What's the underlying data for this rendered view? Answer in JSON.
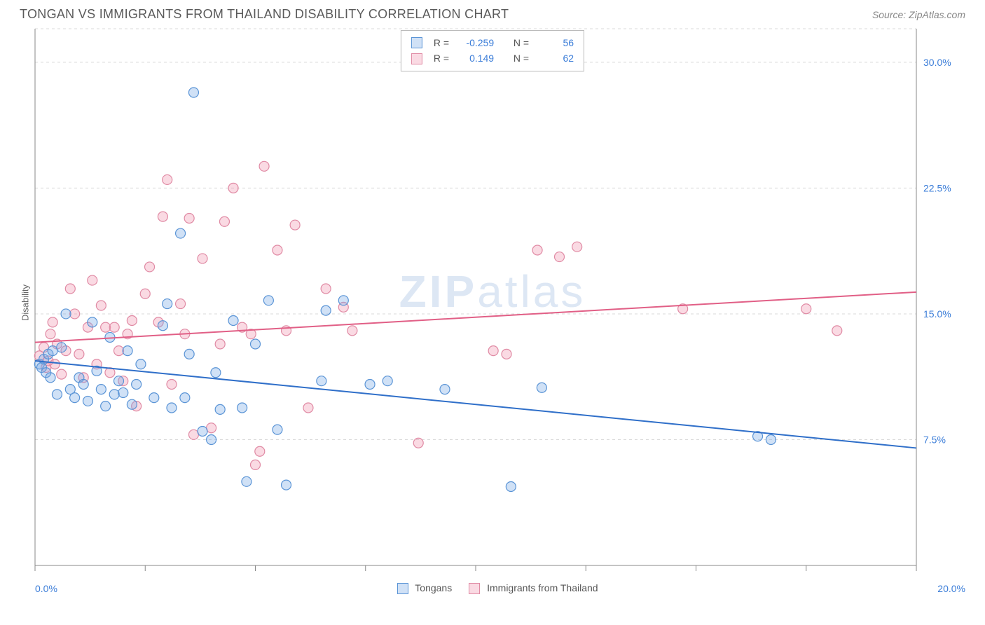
{
  "header": {
    "title": "TONGAN VS IMMIGRANTS FROM THAILAND DISABILITY CORRELATION CHART",
    "source": "Source: ZipAtlas.com"
  },
  "chart": {
    "type": "scatter",
    "watermark": "ZIPatlas",
    "ylabel": "Disability",
    "xlim": [
      0,
      20
    ],
    "ylim": [
      0,
      32
    ],
    "x_ticks": [
      0,
      2.5,
      5,
      7.5,
      10,
      12.5,
      15,
      17.5,
      20
    ],
    "x_tick_labels_visible": {
      "0": "0.0%",
      "20": "20.0%"
    },
    "y_gridlines": [
      7.5,
      15.0,
      22.5,
      30.0
    ],
    "y_tick_labels": [
      "7.5%",
      "15.0%",
      "22.5%",
      "30.0%"
    ],
    "background_color": "#ffffff",
    "grid_color": "#d8d8d8",
    "axis_color": "#888888",
    "label_color": "#3b7dd8",
    "marker_radius": 7,
    "marker_stroke_width": 1.2,
    "line_width": 2,
    "series": [
      {
        "name": "Tongans",
        "fill": "rgba(120,170,230,0.35)",
        "stroke": "#5a94d6",
        "r_label": "R =",
        "r_value": "-0.259",
        "n_label": "N =",
        "n_value": "56",
        "trend": {
          "x1": 0,
          "y1": 12.2,
          "x2": 20,
          "y2": 7.0,
          "color": "#2f6fc9"
        },
        "points": [
          [
            0.1,
            12.0
          ],
          [
            0.15,
            11.8
          ],
          [
            0.2,
            12.3
          ],
          [
            0.25,
            11.5
          ],
          [
            0.3,
            12.6
          ],
          [
            0.35,
            11.2
          ],
          [
            0.4,
            12.8
          ],
          [
            0.5,
            10.2
          ],
          [
            0.6,
            13.0
          ],
          [
            0.7,
            15.0
          ],
          [
            0.8,
            10.5
          ],
          [
            0.9,
            10.0
          ],
          [
            1.0,
            11.2
          ],
          [
            1.1,
            10.8
          ],
          [
            1.2,
            9.8
          ],
          [
            1.3,
            14.5
          ],
          [
            1.4,
            11.6
          ],
          [
            1.5,
            10.5
          ],
          [
            1.6,
            9.5
          ],
          [
            1.7,
            13.6
          ],
          [
            1.8,
            10.2
          ],
          [
            1.9,
            11.0
          ],
          [
            2.0,
            10.3
          ],
          [
            2.1,
            12.8
          ],
          [
            2.2,
            9.6
          ],
          [
            2.3,
            10.8
          ],
          [
            2.4,
            12.0
          ],
          [
            2.7,
            10.0
          ],
          [
            2.9,
            14.3
          ],
          [
            3.0,
            15.6
          ],
          [
            3.1,
            9.4
          ],
          [
            3.3,
            19.8
          ],
          [
            3.4,
            10.0
          ],
          [
            3.5,
            12.6
          ],
          [
            3.6,
            28.2
          ],
          [
            3.8,
            8.0
          ],
          [
            4.0,
            7.5
          ],
          [
            4.1,
            11.5
          ],
          [
            4.2,
            9.3
          ],
          [
            4.5,
            14.6
          ],
          [
            4.7,
            9.4
          ],
          [
            4.8,
            5.0
          ],
          [
            5.0,
            13.2
          ],
          [
            5.3,
            15.8
          ],
          [
            5.5,
            8.1
          ],
          [
            5.7,
            4.8
          ],
          [
            6.5,
            11.0
          ],
          [
            6.6,
            15.2
          ],
          [
            7.0,
            15.8
          ],
          [
            7.6,
            10.8
          ],
          [
            8.0,
            11.0
          ],
          [
            9.3,
            10.5
          ],
          [
            10.8,
            4.7
          ],
          [
            16.4,
            7.7
          ],
          [
            16.7,
            7.5
          ],
          [
            11.5,
            10.6
          ]
        ]
      },
      {
        "name": "Immigrants from Thailand",
        "fill": "rgba(240,150,175,0.35)",
        "stroke": "#e08aa4",
        "r_label": "R =",
        "r_value": "0.149",
        "n_label": "N =",
        "n_value": "62",
        "trend": {
          "x1": 0,
          "y1": 13.3,
          "x2": 20,
          "y2": 16.3,
          "color": "#e15f86"
        },
        "points": [
          [
            0.1,
            12.5
          ],
          [
            0.2,
            13.0
          ],
          [
            0.25,
            11.8
          ],
          [
            0.3,
            12.2
          ],
          [
            0.35,
            13.8
          ],
          [
            0.4,
            14.5
          ],
          [
            0.45,
            12.0
          ],
          [
            0.5,
            13.2
          ],
          [
            0.6,
            11.4
          ],
          [
            0.7,
            12.8
          ],
          [
            0.8,
            16.5
          ],
          [
            0.9,
            15.0
          ],
          [
            1.0,
            12.6
          ],
          [
            1.1,
            11.2
          ],
          [
            1.2,
            14.2
          ],
          [
            1.3,
            17.0
          ],
          [
            1.4,
            12.0
          ],
          [
            1.5,
            15.5
          ],
          [
            1.6,
            14.2
          ],
          [
            1.7,
            11.5
          ],
          [
            1.8,
            14.2
          ],
          [
            1.9,
            12.8
          ],
          [
            2.0,
            11.0
          ],
          [
            2.1,
            13.8
          ],
          [
            2.2,
            14.6
          ],
          [
            2.3,
            9.5
          ],
          [
            2.5,
            16.2
          ],
          [
            2.6,
            17.8
          ],
          [
            2.8,
            14.5
          ],
          [
            2.9,
            20.8
          ],
          [
            3.0,
            23.0
          ],
          [
            3.1,
            10.8
          ],
          [
            3.3,
            15.6
          ],
          [
            3.4,
            13.8
          ],
          [
            3.5,
            20.7
          ],
          [
            3.6,
            7.8
          ],
          [
            3.8,
            18.3
          ],
          [
            4.0,
            8.2
          ],
          [
            4.2,
            13.2
          ],
          [
            4.3,
            20.5
          ],
          [
            4.5,
            22.5
          ],
          [
            4.7,
            14.2
          ],
          [
            4.9,
            13.8
          ],
          [
            5.0,
            6.0
          ],
          [
            5.1,
            6.8
          ],
          [
            5.2,
            23.8
          ],
          [
            5.5,
            18.8
          ],
          [
            5.7,
            14.0
          ],
          [
            5.9,
            20.3
          ],
          [
            6.2,
            9.4
          ],
          [
            6.6,
            16.5
          ],
          [
            7.0,
            15.4
          ],
          [
            7.2,
            14.0
          ],
          [
            8.7,
            7.3
          ],
          [
            10.4,
            12.8
          ],
          [
            10.7,
            12.6
          ],
          [
            11.4,
            18.8
          ],
          [
            11.9,
            18.4
          ],
          [
            12.3,
            19.0
          ],
          [
            14.7,
            15.3
          ],
          [
            17.5,
            15.3
          ],
          [
            18.2,
            14.0
          ]
        ]
      }
    ]
  }
}
